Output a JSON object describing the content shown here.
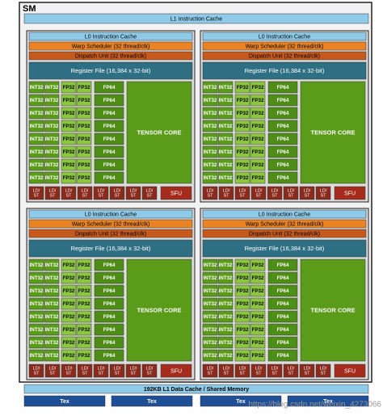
{
  "sm_label": "SM",
  "l1_instruction_cache": "L1 Instruction Cache",
  "partitions": [
    {
      "l0": "L0 Instruction Cache",
      "warp_scheduler": "Warp Scheduler (32 thread/clk)",
      "dispatch_unit": "Dispatch Unit (32 thread/clk)",
      "register_file": "Register File (16,384 x 32-bit)",
      "cores": [
        [
          "INT32",
          "INT32",
          "FP32",
          "FP32",
          "FP64"
        ],
        [
          "INT32",
          "INT32",
          "FP32",
          "FP32",
          "FP64"
        ],
        [
          "INT32",
          "INT32",
          "FP32",
          "FP32",
          "FP64"
        ],
        [
          "INT32",
          "INT32",
          "FP32",
          "FP32",
          "FP64"
        ],
        [
          "INT32",
          "INT32",
          "FP32",
          "FP32",
          "FP64"
        ],
        [
          "INT32",
          "INT32",
          "FP32",
          "FP32",
          "FP64"
        ],
        [
          "INT32",
          "INT32",
          "FP32",
          "FP32",
          "FP64"
        ],
        [
          "INT32",
          "INT32",
          "FP32",
          "FP32",
          "FP64"
        ]
      ],
      "tensor_core": "TENSOR CORE",
      "ld_st": [
        [
          "LD/",
          "ST"
        ],
        [
          "LD/",
          "ST"
        ],
        [
          "LD/",
          "ST"
        ],
        [
          "LD/",
          "ST"
        ],
        [
          "LD/",
          "ST"
        ],
        [
          "LD/",
          "ST"
        ],
        [
          "LD/",
          "ST"
        ],
        [
          "LD/",
          "ST"
        ]
      ],
      "sfu": "SFU"
    },
    {
      "l0": "L0 Instruction Cache",
      "warp_scheduler": "Warp Scheduler (32 thread/clk)",
      "dispatch_unit": "Dispatch Unit (32 thread/clk)",
      "register_file": "Register File (16,384 x 32-bit)",
      "cores": [
        [
          "INT32",
          "INT32",
          "FP32",
          "FP32",
          "FP64"
        ],
        [
          "INT32",
          "INT32",
          "FP32",
          "FP32",
          "FP64"
        ],
        [
          "INT32",
          "INT32",
          "FP32",
          "FP32",
          "FP64"
        ],
        [
          "INT32",
          "INT32",
          "FP32",
          "FP32",
          "FP64"
        ],
        [
          "INT32",
          "INT32",
          "FP32",
          "FP32",
          "FP64"
        ],
        [
          "INT32",
          "INT32",
          "FP32",
          "FP32",
          "FP64"
        ],
        [
          "INT32",
          "INT32",
          "FP32",
          "FP32",
          "FP64"
        ],
        [
          "INT32",
          "INT32",
          "FP32",
          "FP32",
          "FP64"
        ]
      ],
      "tensor_core": "TENSOR CORE",
      "ld_st": [
        [
          "LD/",
          "ST"
        ],
        [
          "LD/",
          "ST"
        ],
        [
          "LD/",
          "ST"
        ],
        [
          "LD/",
          "ST"
        ],
        [
          "LD/",
          "ST"
        ],
        [
          "LD/",
          "ST"
        ],
        [
          "LD/",
          "ST"
        ],
        [
          "LD/",
          "ST"
        ]
      ],
      "sfu": "SFU"
    },
    {
      "l0": "L0 Instruction Cache",
      "warp_scheduler": "Warp Scheduler (32 thread/clk)",
      "dispatch_unit": "Dispatch Unit (32 thread/clk)",
      "register_file": "Register File (16,384 x 32-bit)",
      "cores": [
        [
          "INT32",
          "INT32",
          "FP32",
          "FP32",
          "FP64"
        ],
        [
          "INT32",
          "INT32",
          "FP32",
          "FP32",
          "FP64"
        ],
        [
          "INT32",
          "INT32",
          "FP32",
          "FP32",
          "FP64"
        ],
        [
          "INT32",
          "INT32",
          "FP32",
          "FP32",
          "FP64"
        ],
        [
          "INT32",
          "INT32",
          "FP32",
          "FP32",
          "FP64"
        ],
        [
          "INT32",
          "INT32",
          "FP32",
          "FP32",
          "FP64"
        ],
        [
          "INT32",
          "INT32",
          "FP32",
          "FP32",
          "FP64"
        ],
        [
          "INT32",
          "INT32",
          "FP32",
          "FP32",
          "FP64"
        ]
      ],
      "tensor_core": "TENSOR CORE",
      "ld_st": [
        [
          "LD/",
          "ST"
        ],
        [
          "LD/",
          "ST"
        ],
        [
          "LD/",
          "ST"
        ],
        [
          "LD/",
          "ST"
        ],
        [
          "LD/",
          "ST"
        ],
        [
          "LD/",
          "ST"
        ],
        [
          "LD/",
          "ST"
        ],
        [
          "LD/",
          "ST"
        ]
      ],
      "sfu": "SFU"
    },
    {
      "l0": "L0 Instruction Cache",
      "warp_scheduler": "Warp Scheduler (32 thread/clk)",
      "dispatch_unit": "Dispatch Unit (32 thread/clk)",
      "register_file": "Register File (16,384 x 32-bit)",
      "cores": [
        [
          "INT32",
          "INT32",
          "FP32",
          "FP32",
          "FP64"
        ],
        [
          "INT32",
          "INT32",
          "FP32",
          "FP32",
          "FP64"
        ],
        [
          "INT32",
          "INT32",
          "FP32",
          "FP32",
          "FP64"
        ],
        [
          "INT32",
          "INT32",
          "FP32",
          "FP32",
          "FP64"
        ],
        [
          "INT32",
          "INT32",
          "FP32",
          "FP32",
          "FP64"
        ],
        [
          "INT32",
          "INT32",
          "FP32",
          "FP32",
          "FP64"
        ],
        [
          "INT32",
          "INT32",
          "FP32",
          "FP32",
          "FP64"
        ],
        [
          "INT32",
          "INT32",
          "FP32",
          "FP32",
          "FP64"
        ]
      ],
      "tensor_core": "TENSOR CORE",
      "ld_st": [
        [
          "LD/",
          "ST"
        ],
        [
          "LD/",
          "ST"
        ],
        [
          "LD/",
          "ST"
        ],
        [
          "LD/",
          "ST"
        ],
        [
          "LD/",
          "ST"
        ],
        [
          "LD/",
          "ST"
        ],
        [
          "LD/",
          "ST"
        ],
        [
          "LD/",
          "ST"
        ]
      ],
      "sfu": "SFU"
    }
  ],
  "l1_data_cache": "192KB L1 Data Cache / Shared Memory",
  "tex": [
    "Tex",
    "Tex",
    "Tex",
    "Tex"
  ],
  "watermark": "https://blog.csdn.net/weixin_4273066"
}
